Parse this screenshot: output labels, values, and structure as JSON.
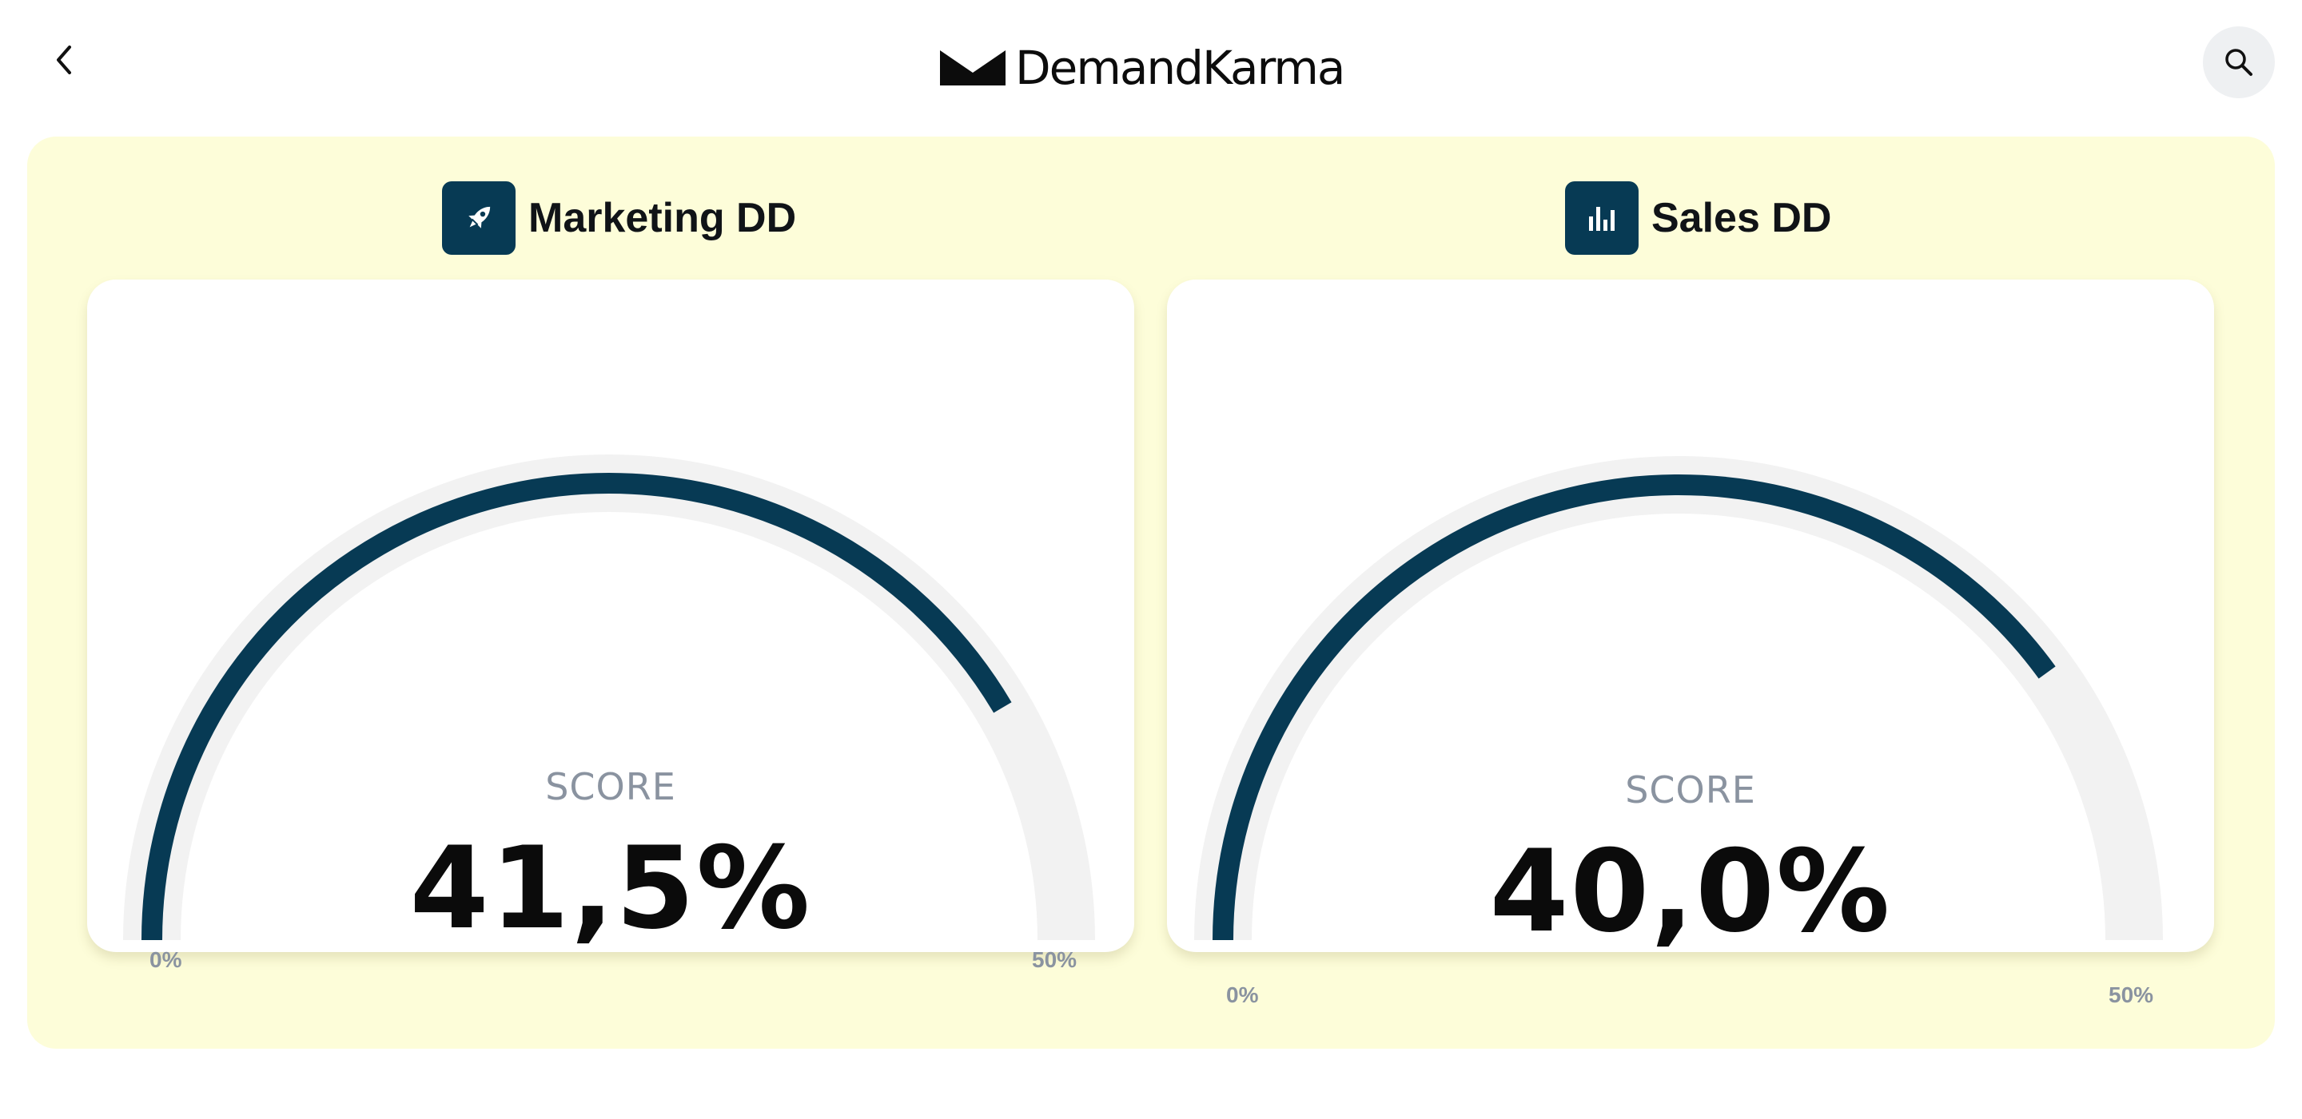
{
  "header": {
    "brand_name": "DemandKarma",
    "back_icon": "chevron-left-icon",
    "search_icon": "search-icon"
  },
  "gauges": [
    {
      "title": "Marketing DD",
      "icon": "rocket-icon",
      "score_label": "SCORE",
      "score_text": "41,5%",
      "value": 41.5,
      "min_label": "0%",
      "max_label": "50%",
      "min": 0,
      "max": 50
    },
    {
      "title": "Sales DD",
      "icon": "bar-chart-icon",
      "score_label": "SCORE",
      "score_text": "40,0%",
      "value": 40.0,
      "min_label": "0%",
      "max_label": "50%",
      "min": 0,
      "max": 50
    }
  ],
  "colors": {
    "panel_background": "#fdfdd9",
    "accent": "#073a54",
    "gauge_track": "#f2f2f2",
    "muted_text": "#8a93a0"
  }
}
